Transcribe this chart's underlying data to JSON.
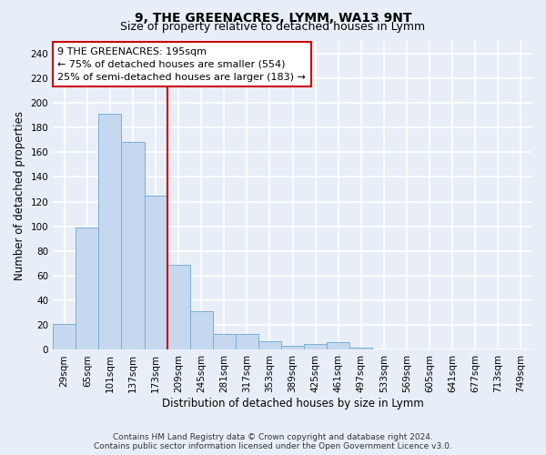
{
  "title": "9, THE GREENACRES, LYMM, WA13 9NT",
  "subtitle": "Size of property relative to detached houses in Lymm",
  "xlabel": "Distribution of detached houses by size in Lymm",
  "ylabel": "Number of detached properties",
  "bar_labels": [
    "29sqm",
    "65sqm",
    "101sqm",
    "137sqm",
    "173sqm",
    "209sqm",
    "245sqm",
    "281sqm",
    "317sqm",
    "353sqm",
    "389sqm",
    "425sqm",
    "461sqm",
    "497sqm",
    "533sqm",
    "569sqm",
    "605sqm",
    "641sqm",
    "677sqm",
    "713sqm",
    "749sqm"
  ],
  "bar_values": [
    21,
    99,
    191,
    168,
    125,
    69,
    31,
    13,
    13,
    7,
    3,
    5,
    6,
    2,
    0,
    0,
    0,
    0,
    0,
    0,
    0
  ],
  "bar_color": "#c5d8f0",
  "bar_edge_color": "#7aafd4",
  "vline_color": "#cc0000",
  "vline_pos": 4.5,
  "ylim_max": 250,
  "ytick_step": 20,
  "annotation_line1": "9 THE GREENACRES: 195sqm",
  "annotation_line2": "← 75% of detached houses are smaller (554)",
  "annotation_line3": "25% of semi-detached houses are larger (183) →",
  "annotation_box_facecolor": "#ffffff",
  "annotation_box_edgecolor": "#cc0000",
  "bg_color": "#e8eef8",
  "plot_bg_color": "#e8eef8",
  "grid_color": "#ffffff",
  "title_fontsize": 10,
  "subtitle_fontsize": 9,
  "axis_label_fontsize": 8.5,
  "tick_fontsize": 7.5,
  "annotation_fontsize": 8,
  "footer_fontsize": 6.5,
  "footer_text": "Contains HM Land Registry data © Crown copyright and database right 2024.\nContains public sector information licensed under the Open Government Licence v3.0."
}
